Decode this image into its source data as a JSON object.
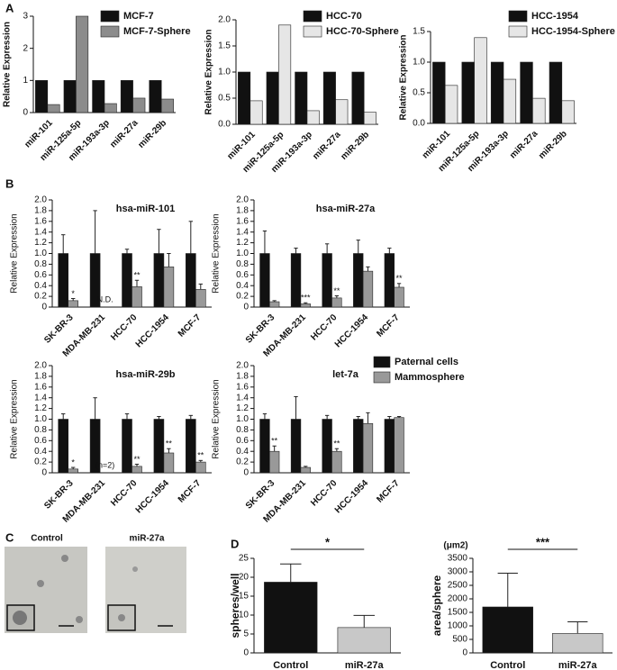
{
  "chart_data": [
    {
      "type": "bar",
      "panel_label": "A",
      "y_label": "Relative Expression",
      "categories": [
        "miR-101",
        "miR-125a-5p",
        "miR-193a-3p",
        "miR-27a",
        "miR-29b"
      ],
      "series": [
        {
          "name": "MCF-7",
          "color": "#111111",
          "values": [
            1,
            1,
            1,
            1,
            1
          ]
        },
        {
          "name": "MCF-7-Sphere",
          "color": "#8c8c8c",
          "values": [
            0.25,
            3.0,
            0.28,
            0.45,
            0.42
          ]
        }
      ],
      "ylim": [
        0,
        3
      ],
      "yticks": [
        0,
        1,
        2,
        3
      ]
    },
    {
      "type": "bar",
      "y_label": "Relative Expression",
      "categories": [
        "miR-101",
        "miR-125a-5p",
        "miR-193a-3p",
        "miR-27a",
        "miR-29b"
      ],
      "series": [
        {
          "name": "HCC-70",
          "color": "#111111",
          "values": [
            1,
            1,
            1,
            1,
            1
          ]
        },
        {
          "name": "HCC-70-Sphere",
          "color": "#e6e6e6",
          "values": [
            0.45,
            1.9,
            0.26,
            0.47,
            0.23
          ]
        }
      ],
      "ylim": [
        0,
        2
      ],
      "yticks": [
        {
          "value": 0,
          "label": "0.0"
        },
        0.5,
        {
          "value": 1,
          "label": "1.0"
        },
        1.5,
        {
          "value": 2,
          "label": "2.0"
        }
      ]
    },
    {
      "type": "bar",
      "y_label": "Relative Expression",
      "categories": [
        "miR-101",
        "miR-125a-5p",
        "miR-193a-3p",
        "miR-27a",
        "miR-29b"
      ],
      "series": [
        {
          "name": "HCC-1954",
          "color": "#111111",
          "values": [
            1,
            1,
            1,
            1,
            1
          ]
        },
        {
          "name": "HCC-1954-Sphere",
          "color": "#e6e6e6",
          "values": [
            0.62,
            1.4,
            0.72,
            0.41,
            0.37
          ]
        }
      ],
      "ylim": [
        0,
        1.5
      ],
      "yticks": [
        {
          "value": 0,
          "label": "0.0"
        },
        0.5,
        {
          "value": 1,
          "label": "1.0"
        },
        1.5
      ]
    },
    {
      "type": "bar",
      "panel_label": "B",
      "title": "hsa-miR-101",
      "y_label": "Relative Expression",
      "categories": [
        "SK-BR-3",
        "MDA-MB-231",
        "HCC-70",
        "HCC-1954",
        "MCF-7"
      ],
      "series": [
        {
          "color": "#111111",
          "values": [
            1,
            1,
            1,
            1,
            1
          ],
          "errors": [
            0.35,
            0.8,
            0.08,
            0.45,
            0.6
          ]
        },
        {
          "color": "#999999",
          "values": [
            0.12,
            null,
            0.38,
            0.75,
            0.33
          ],
          "errors": [
            0.04,
            null,
            0.12,
            0.25,
            0.1
          ]
        }
      ],
      "annotations": [
        "*",
        "N.D.",
        "**",
        null,
        null
      ],
      "ylim": [
        0,
        2
      ],
      "yticks": [
        0,
        0.2,
        0.4,
        0.6,
        0.8,
        {
          "value": 1,
          "label": "1.0"
        },
        1.2,
        1.4,
        1.6,
        1.8,
        {
          "value": 2,
          "label": "2.0"
        }
      ]
    },
    {
      "type": "bar",
      "title": "hsa-miR-27a",
      "y_label": "Relative Expression",
      "categories": [
        "SK-BR-3",
        "MDA-MB-231",
        "HCC-70",
        "HCC-1954",
        "MCF-7"
      ],
      "series": [
        {
          "color": "#111111",
          "values": [
            1,
            1,
            1,
            1,
            1
          ],
          "errors": [
            0.42,
            0.1,
            0.18,
            0.25,
            0.1
          ]
        },
        {
          "color": "#999999",
          "values": [
            0.1,
            0.06,
            0.17,
            0.67,
            0.37
          ],
          "errors": [
            0.02,
            0.02,
            0.04,
            0.08,
            0.07
          ]
        }
      ],
      "annotations": [
        null,
        "***",
        "**",
        null,
        "**"
      ],
      "ylim": [
        0,
        2
      ],
      "yticks": [
        0,
        0.2,
        0.4,
        0.6,
        0.8,
        {
          "value": 1,
          "label": "1.0"
        },
        1.2,
        1.4,
        1.6,
        1.8,
        {
          "value": 2,
          "label": "2.0"
        }
      ]
    },
    {
      "type": "bar",
      "title": "hsa-miR-29b",
      "y_label": "Relative Expression",
      "categories": [
        "SK-BR-3",
        "MDA-MB-231",
        "HCC-70",
        "HCC-1954",
        "MCF-7"
      ],
      "series": [
        {
          "color": "#111111",
          "values": [
            1,
            1,
            1,
            1,
            1
          ],
          "errors": [
            0.1,
            0.4,
            0.1,
            0.05,
            0.07
          ]
        },
        {
          "color": "#999999",
          "values": [
            0.07,
            null,
            0.12,
            0.37,
            0.2
          ],
          "errors": [
            0.03,
            null,
            0.04,
            0.08,
            0.03
          ]
        }
      ],
      "annotations": [
        "*",
        "(n=2)",
        "**",
        "**",
        "**"
      ],
      "ylim": [
        0,
        2
      ],
      "yticks": [
        0,
        0.2,
        0.4,
        0.6,
        0.8,
        {
          "value": 1,
          "label": "1.0"
        },
        1.2,
        1.4,
        1.6,
        1.8,
        {
          "value": 2,
          "label": "2.0"
        }
      ]
    },
    {
      "type": "bar",
      "title": "let-7a",
      "y_label": "Relative Expression",
      "categories": [
        "SK-BR-3",
        "MDA-MB-231",
        "HCC-70",
        "HCC-1954",
        "MCF-7"
      ],
      "series": [
        {
          "name": "Paternal cells",
          "color": "#111111",
          "values": [
            1,
            1,
            1,
            1,
            1
          ],
          "errors": [
            0.1,
            0.42,
            0.07,
            0.05,
            0.05
          ]
        },
        {
          "name": "Mammosphere",
          "color": "#999999",
          "values": [
            0.4,
            0.1,
            0.4,
            0.92,
            1.03
          ],
          "errors": [
            0.1,
            0.02,
            0.05,
            0.2,
            0.02
          ]
        }
      ],
      "annotations": [
        "**",
        null,
        "**",
        null,
        null
      ],
      "ylim": [
        0,
        2
      ],
      "yticks": [
        0,
        0.2,
        0.4,
        0.6,
        0.8,
        {
          "value": 1,
          "label": "1.0"
        },
        1.2,
        1.4,
        1.6,
        1.8,
        {
          "value": 2,
          "label": "2.0"
        }
      ]
    },
    {
      "type": "bar",
      "panel_label": "D",
      "y_label": "spheres/well",
      "significance": "*",
      "categories": [
        "Control",
        "miR-27a"
      ],
      "series": [
        {
          "colors": [
            "#111111",
            "#c8c8c8"
          ],
          "values": [
            18.7,
            6.7
          ],
          "errors": [
            4.8,
            3.2
          ]
        }
      ],
      "ylim": [
        0,
        25
      ],
      "yticks": [
        0,
        5,
        10,
        15,
        20,
        25
      ]
    },
    {
      "type": "bar",
      "y_label": "area/sphere",
      "y_unit": "(μm2)",
      "significance": "***",
      "categories": [
        "Control",
        "miR-27a"
      ],
      "series": [
        {
          "colors": [
            "#111111",
            "#c8c8c8"
          ],
          "values": [
            1700,
            720
          ],
          "errors": [
            1250,
            430
          ]
        }
      ],
      "ylim": [
        0,
        3500
      ],
      "yticks": [
        0,
        500,
        1000,
        1500,
        2000,
        2500,
        3000,
        3500
      ]
    }
  ],
  "panel_c": {
    "label": "C",
    "images": [
      "Control",
      "miR-27a"
    ]
  }
}
